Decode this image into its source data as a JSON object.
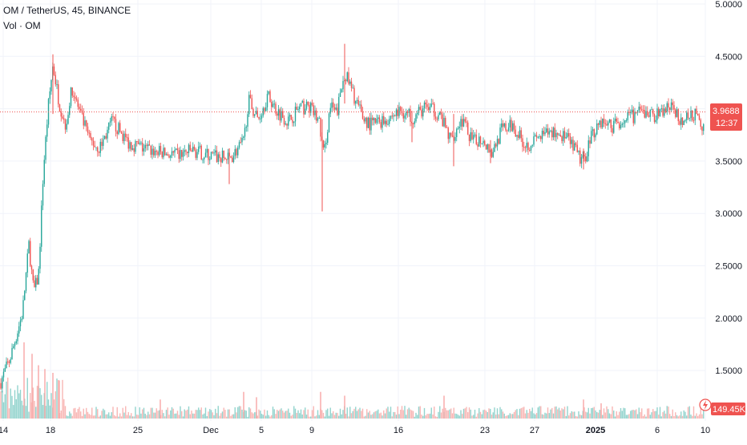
{
  "legend": {
    "title": "OM / TetherUS, 45, BINANCE",
    "volume_label": "Vol · OM"
  },
  "colors": {
    "up": "#26a69a",
    "down": "#ef5350",
    "grid": "#f0f3fa",
    "axis_text": "#131722",
    "price_line": "#ef5350",
    "volume_up": "#80cbc4",
    "volume_down": "#f7a9a7"
  },
  "price_tag": {
    "value": "3.9688",
    "countdown": "12:37"
  },
  "volume_tag": {
    "value": "149.45K"
  },
  "alert_icon": "lightning-icon",
  "chart_data": {
    "type": "candlestick",
    "title": "OM / TetherUS, 45, BINANCE",
    "ylim": [
      1.1,
      5.0
    ],
    "y_ticks": [
      "5.0000",
      "4.5000",
      "4.0000",
      "3.5000",
      "3.0000",
      "2.5000",
      "2.0000",
      "1.5000"
    ],
    "x_ticks": [
      "14",
      "18",
      "25",
      "Dec",
      "5",
      "9",
      "16",
      "23",
      "27",
      "2025",
      "6",
      "10"
    ],
    "grid": true,
    "last_price": 3.9688,
    "last_volume": "149.45K",
    "price_path": [
      [
        0,
        1.38
      ],
      [
        12,
        1.6
      ],
      [
        20,
        1.82
      ],
      [
        28,
        2.05
      ],
      [
        36,
        2.7
      ],
      [
        42,
        2.25
      ],
      [
        48,
        2.4
      ],
      [
        54,
        3.4
      ],
      [
        60,
        4.0
      ],
      [
        66,
        4.42
      ],
      [
        74,
        4.05
      ],
      [
        82,
        3.85
      ],
      [
        90,
        4.2
      ],
      [
        100,
        3.95
      ],
      [
        112,
        3.7
      ],
      [
        124,
        3.62
      ],
      [
        140,
        3.88
      ],
      [
        160,
        3.68
      ],
      [
        180,
        3.62
      ],
      [
        200,
        3.58
      ],
      [
        220,
        3.55
      ],
      [
        240,
        3.6
      ],
      [
        262,
        3.55
      ],
      [
        286,
        3.52
      ],
      [
        304,
        3.68
      ],
      [
        310,
        4.08
      ],
      [
        322,
        3.9
      ],
      [
        334,
        4.12
      ],
      [
        346,
        3.98
      ],
      [
        360,
        3.88
      ],
      [
        372,
        4.0
      ],
      [
        386,
        4.02
      ],
      [
        398,
        3.88
      ],
      [
        404,
        3.55
      ],
      [
        412,
        4.02
      ],
      [
        420,
        3.95
      ],
      [
        430,
        4.35
      ],
      [
        440,
        4.15
      ],
      [
        452,
        3.92
      ],
      [
        462,
        3.85
      ],
      [
        482,
        3.9
      ],
      [
        500,
        3.98
      ],
      [
        516,
        3.92
      ],
      [
        532,
        4.02
      ],
      [
        548,
        3.95
      ],
      [
        562,
        3.7
      ],
      [
        576,
        3.9
      ],
      [
        590,
        3.68
      ],
      [
        602,
        3.72
      ],
      [
        614,
        3.58
      ],
      [
        626,
        3.8
      ],
      [
        640,
        3.84
      ],
      [
        656,
        3.65
      ],
      [
        672,
        3.72
      ],
      [
        690,
        3.78
      ],
      [
        704,
        3.74
      ],
      [
        716,
        3.62
      ],
      [
        728,
        3.48
      ],
      [
        736,
        3.72
      ],
      [
        748,
        3.88
      ],
      [
        764,
        3.84
      ],
      [
        780,
        3.9
      ],
      [
        800,
        3.96
      ],
      [
        820,
        3.94
      ],
      [
        836,
        4.02
      ],
      [
        852,
        3.88
      ],
      [
        866,
        3.95
      ],
      [
        878,
        3.8
      ],
      [
        880,
        3.9688
      ]
    ],
    "wicks": [
      {
        "x": 66,
        "high": 4.52,
        "low": 3.95
      },
      {
        "x": 402,
        "high": 3.9,
        "low": 3.02
      },
      {
        "x": 430,
        "high": 4.62,
        "low": 4.05
      },
      {
        "x": 514,
        "high": 3.98,
        "low": 3.68
      },
      {
        "x": 566,
        "high": 3.95,
        "low": 3.45
      },
      {
        "x": 612,
        "high": 3.7,
        "low": 3.48
      },
      {
        "x": 728,
        "high": 3.62,
        "low": 3.42
      },
      {
        "x": 286,
        "high": 3.62,
        "low": 3.28
      }
    ],
    "volume_spikes": [
      {
        "x": 30,
        "rel": 1.0
      },
      {
        "x": 40,
        "rel": 0.85
      },
      {
        "x": 48,
        "rel": 0.7
      },
      {
        "x": 56,
        "rel": 0.65
      },
      {
        "x": 66,
        "rel": 0.6
      },
      {
        "x": 74,
        "rel": 0.5
      },
      {
        "x": 200,
        "rel": 0.25
      },
      {
        "x": 304,
        "rel": 0.35
      },
      {
        "x": 320,
        "rel": 0.28
      },
      {
        "x": 400,
        "rel": 0.35
      },
      {
        "x": 430,
        "rel": 0.3
      },
      {
        "x": 554,
        "rel": 0.3
      },
      {
        "x": 728,
        "rel": 0.25
      },
      {
        "x": 750,
        "rel": 0.2
      }
    ]
  }
}
